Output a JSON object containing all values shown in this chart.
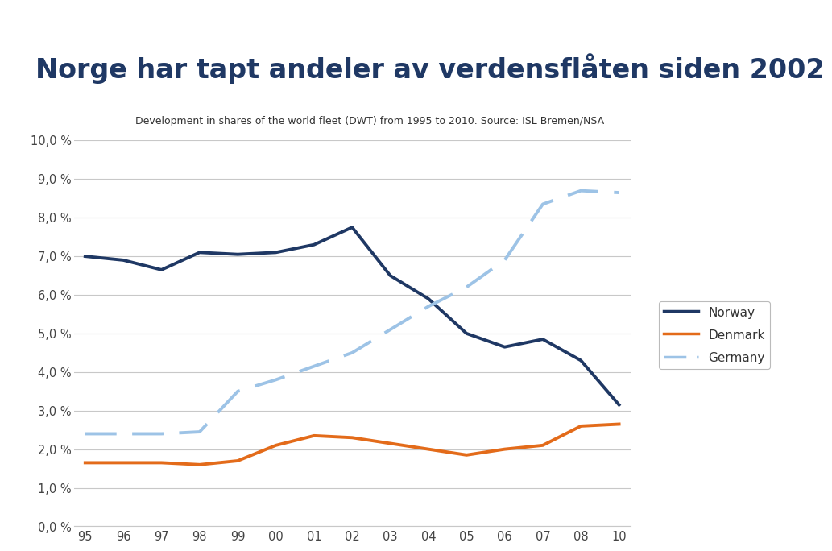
{
  "title": "Norge har tapt andeler av verdensflåten siden 2002",
  "subtitle": "Development in shares of the world fleet (DWT) from 1995 to 2010. Source: ISL Bremen/NSA",
  "x_labels": [
    "95",
    "96",
    "97",
    "98",
    "99",
    "00",
    "01",
    "02",
    "03",
    "04",
    "05",
    "06",
    "07",
    "08",
    "10"
  ],
  "norway": [
    7.0,
    6.9,
    6.65,
    7.1,
    7.05,
    7.1,
    7.3,
    7.75,
    6.5,
    5.9,
    5.0,
    4.65,
    4.85,
    4.3,
    3.15
  ],
  "denmark": [
    1.65,
    1.65,
    1.65,
    1.6,
    1.7,
    2.1,
    2.35,
    2.3,
    2.15,
    2.0,
    1.85,
    2.0,
    2.1,
    2.6,
    2.65
  ],
  "germany": [
    2.4,
    2.4,
    2.4,
    2.45,
    3.5,
    3.8,
    4.15,
    4.5,
    5.1,
    5.7,
    6.2,
    6.9,
    8.35,
    8.7,
    8.65
  ],
  "norway_color": "#1f3864",
  "denmark_color": "#e36b1a",
  "germany_color": "#9dc3e6",
  "bg_color": "#ffffff",
  "header_bg": "#e0e0e0",
  "ylim": [
    0.0,
    10.0
  ],
  "yticks": [
    0.0,
    1.0,
    2.0,
    3.0,
    4.0,
    5.0,
    6.0,
    7.0,
    8.0,
    9.0,
    10.0
  ],
  "title_color": "#1f3864",
  "title_fontsize": 24,
  "subtitle_fontsize": 9,
  "grid_color": "#c8c8c8",
  "legend_norway": "Norway",
  "legend_denmark": "Denmark",
  "legend_germany": "Germany"
}
